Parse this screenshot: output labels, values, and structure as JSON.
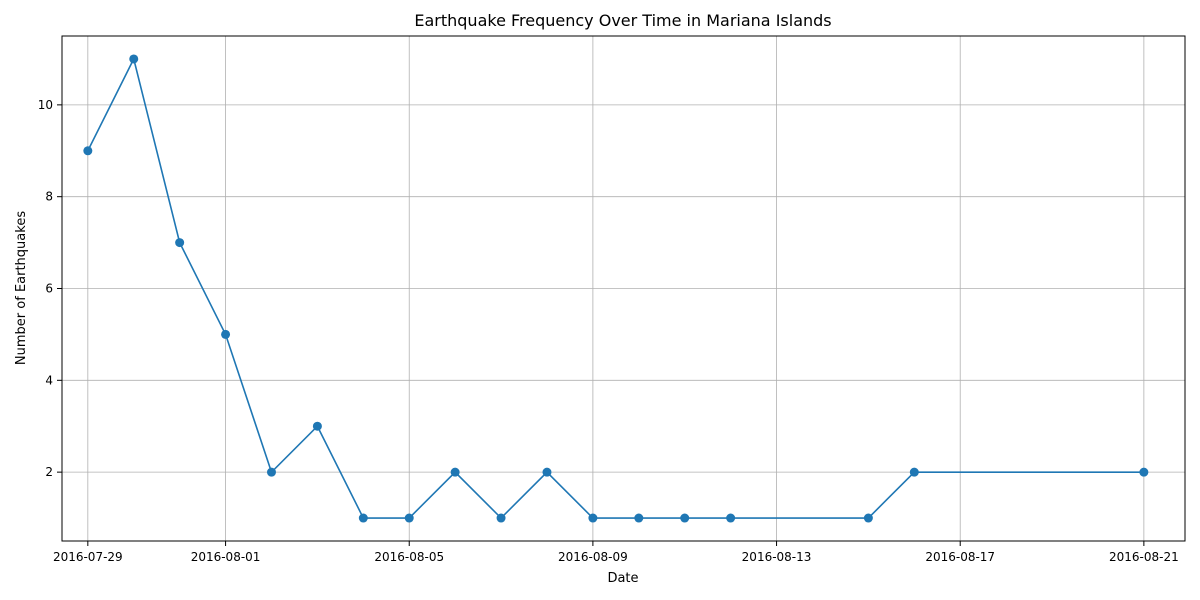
{
  "chart_data": {
    "type": "line",
    "title": "Earthquake Frequency Over Time in Mariana Islands",
    "xlabel": "Date",
    "ylabel": "Number of Earthquakes",
    "x_type": "date",
    "xlim": [
      "2016-07-28T10:30",
      "2016-08-21T21:30"
    ],
    "ylim": [
      0.5,
      11.5
    ],
    "x_ticks": [
      "2016-07-29",
      "2016-08-01",
      "2016-08-05",
      "2016-08-09",
      "2016-08-13",
      "2016-08-17",
      "2016-08-21"
    ],
    "y_ticks": [
      2,
      4,
      6,
      8,
      10
    ],
    "grid": true,
    "color": "#1f77b4",
    "series": [
      {
        "x": [
          "2016-07-29",
          "2016-07-30",
          "2016-07-31",
          "2016-08-01",
          "2016-08-02",
          "2016-08-03",
          "2016-08-04",
          "2016-08-05",
          "2016-08-06",
          "2016-08-07",
          "2016-08-08",
          "2016-08-09",
          "2016-08-10",
          "2016-08-11",
          "2016-08-12",
          "2016-08-15",
          "2016-08-16",
          "2016-08-21"
        ],
        "values": [
          9,
          11,
          7,
          5,
          2,
          3,
          1,
          1,
          2,
          1,
          2,
          1,
          1,
          1,
          1,
          1,
          2,
          2
        ]
      }
    ]
  }
}
